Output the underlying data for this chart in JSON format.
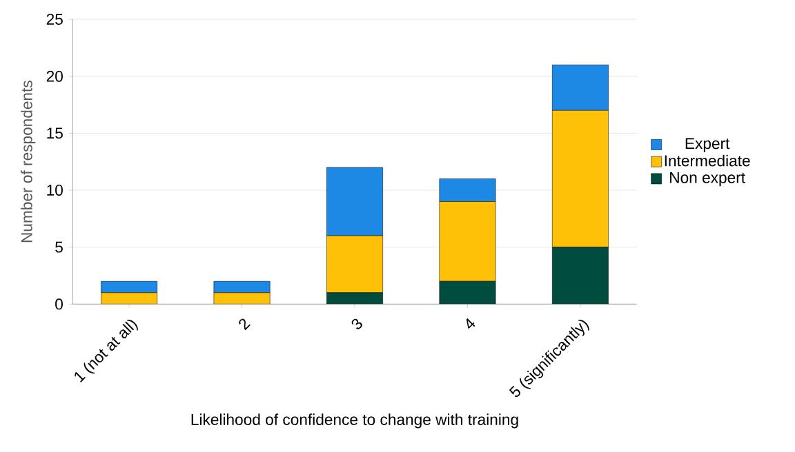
{
  "chart_data": {
    "type": "bar",
    "stacked": true,
    "xlabel": "Likelihood of confidence to change with training",
    "ylabel": "Number of respondents",
    "categories": [
      "1 (not at all)",
      "2",
      "3",
      "4",
      "5 (significantly)"
    ],
    "series": [
      {
        "name": "Non expert",
        "color": "#004d40",
        "values": [
          0,
          0,
          1,
          2,
          5
        ]
      },
      {
        "name": "Intermediate",
        "color": "#ffc107",
        "values": [
          1,
          1,
          5,
          7,
          12
        ]
      },
      {
        "name": "Expert",
        "color": "#1e88e5",
        "values": [
          1,
          1,
          6,
          2,
          4
        ]
      }
    ],
    "ylim": [
      0,
      25
    ],
    "yticks": [
      0,
      5,
      10,
      15,
      20,
      25
    ],
    "grid": "y",
    "legend": "right"
  }
}
